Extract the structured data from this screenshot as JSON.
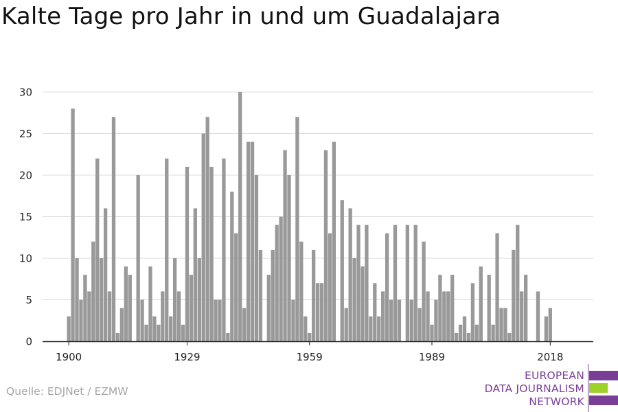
{
  "title": "Kalte Tage pro Jahr in und um Guadalajara",
  "source": "Quelle: EDJNet / EZMW",
  "logo": {
    "lines": [
      "EUROPEAN",
      "DATA JOURNALISM",
      "NETWORK"
    ],
    "colors": {
      "purple": "#7a3e96",
      "green": "#9ed22b"
    }
  },
  "chart_data": {
    "type": "bar",
    "color": "#999999",
    "x_start": 1900,
    "x_end": 2019,
    "ylim": [
      0,
      30
    ],
    "yticks": [
      0,
      5,
      10,
      15,
      20,
      25,
      30
    ],
    "xticks": [
      1900,
      1929,
      1959,
      1989,
      2018
    ],
    "grid": true,
    "legend": "none",
    "values": [
      3,
      28,
      10,
      5,
      8,
      6,
      12,
      22,
      10,
      16,
      6,
      27,
      1,
      4,
      9,
      8,
      0,
      20,
      5,
      2,
      9,
      3,
      2,
      6,
      22,
      3,
      10,
      6,
      2,
      21,
      8,
      16,
      10,
      25,
      27,
      21,
      5,
      5,
      22,
      1,
      18,
      13,
      30,
      4,
      24,
      24,
      20,
      11,
      0,
      8,
      11,
      14,
      15,
      23,
      20,
      5,
      27,
      12,
      3,
      1,
      11,
      7,
      7,
      23,
      13,
      24,
      0,
      17,
      4,
      16,
      10,
      14,
      9,
      14,
      3,
      7,
      3,
      6,
      13,
      5,
      14,
      5,
      0,
      14,
      5,
      14,
      4,
      12,
      6,
      2,
      5,
      8,
      6,
      6,
      8,
      1,
      2,
      3,
      1,
      7,
      2,
      9,
      0,
      8,
      2,
      13,
      4,
      4,
      1,
      11,
      14,
      6,
      8,
      0,
      0,
      6,
      0,
      3,
      4,
      0
    ]
  }
}
